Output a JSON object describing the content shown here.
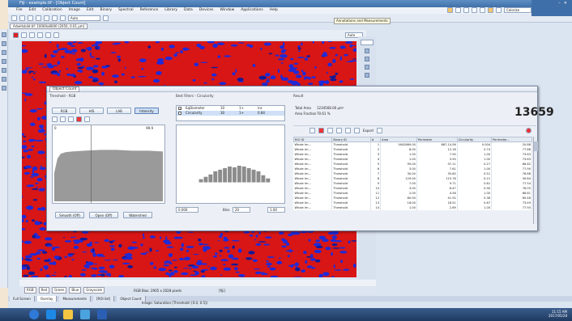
{
  "window": {
    "title": "Fiji - example.tif - [Object Count]",
    "menu": [
      "File",
      "Edit",
      "Calibration",
      "Image",
      "Edit",
      "Binary",
      "Spectral",
      "Reference",
      "Library",
      "Data",
      "Devices",
      "Window",
      "Applications",
      "Help"
    ],
    "tooltip": "Annotations and Measurements",
    "doc_tab": "Arbeitsbild.tif: 10000x8000 (2050, 0.01 µm)",
    "scale_select": "Auto",
    "right_select": "Colorize",
    "view_sel": "Auto"
  },
  "status": {
    "zoom_text": "RGB Bias: 2905 x 2028 pixels",
    "view_tabs": [
      "RGB",
      "Red",
      "Green",
      "Blue",
      "Grayscale"
    ],
    "pixel_text": "[fiji]"
  },
  "bottom_tabs": [
    "Full Screen",
    "Overlay",
    "Measurements",
    "[ROI list]",
    "Object Count"
  ],
  "status_center": "Image: Saturation (Threshold: [0.0, 0.5])",
  "taskbar": {
    "time": "11:15 AM",
    "date": "2017/05/28"
  },
  "dialog": {
    "title": "Object Count",
    "sections": {
      "threshold": "Threshold - RGB",
      "filters": "Best Filters - Circularity",
      "result": "Result"
    },
    "mode_buttons": [
      "RGB",
      "HIS",
      "LAB",
      "Intensity"
    ],
    "hist_left_min": "0",
    "hist_left_max": "99.9",
    "range_field_1": "0.000",
    "range_field_2": "1.00",
    "bins_label": "Bins",
    "bins_value": "20",
    "filter_rows": [
      {
        "checked": true,
        "name": "EqDiameter",
        "a": "10",
        "b": "1+",
        "c": "inc"
      },
      {
        "checked": false,
        "name": "Circularity",
        "a": "30",
        "b": "1+",
        "c": "0.84"
      }
    ],
    "bottom_controls": [
      "Smooth (Off)",
      "Open (Off)",
      "Watershed"
    ],
    "total_area_label": "Total Area",
    "total_area_value": "1234568.00  µm²",
    "area_fraction_label": "Area Fraction",
    "area_fraction_value": "70.61 %",
    "object_count": "13659",
    "export_label": "Export",
    "table_headers": [
      "ROI ID",
      "Binary ID",
      "#",
      "Area",
      "Perimeter",
      "Circularity",
      "Perimeter..."
    ],
    "table_rows": [
      [
        "Whole Im...",
        "Threshold",
        "1",
        "1642869.00",
        "687,14.56",
        "0.004",
        "20.88"
      ],
      [
        "Whole Im...",
        "Threshold",
        "2",
        "8.00",
        "12.18",
        "0.74",
        "77.88"
      ],
      [
        "Whole Im...",
        "Threshold",
        "3",
        "1.00",
        "7.90",
        "1.00",
        "73.63"
      ],
      [
        "Whole Im...",
        "Threshold",
        "4",
        "1.00",
        "3.90",
        "1.00",
        "73.63"
      ],
      [
        "Whole Im...",
        "Threshold",
        "5",
        "95.00",
        "97.11",
        "0.27",
        "66.82"
      ],
      [
        "Whole Im...",
        "Threshold",
        "6",
        "3.00",
        "7.61",
        "1.00",
        "77.90"
      ],
      [
        "Whole Im...",
        "Threshold",
        "7",
        "30.00",
        "35.80",
        "0.51",
        "76.88"
      ],
      [
        "Whole Im...",
        "Threshold",
        "8",
        "129.00",
        "115.76",
        "0.21",
        "39.84"
      ],
      [
        "Whole Im...",
        "Threshold",
        "9",
        "7.00",
        "9.71",
        "0.81",
        "77.54"
      ],
      [
        "Whole Im...",
        "Threshold",
        "10",
        "3.00",
        "6.47",
        "0.90",
        "76.05"
      ],
      [
        "Whole Im...",
        "Threshold",
        "11",
        "2.00",
        "4.58",
        "1.00",
        "68.81"
      ],
      [
        "Whole Im...",
        "Threshold",
        "12",
        "80.00",
        "41.92",
        "0.36",
        "69.48"
      ],
      [
        "Whole Im...",
        "Threshold",
        "13",
        "18.00",
        "18.51",
        "0.67",
        "73.49"
      ],
      [
        "Whole Im...",
        "Threshold",
        "14",
        "1.00",
        "2.89",
        "1.00",
        "77.93"
      ]
    ]
  }
}
